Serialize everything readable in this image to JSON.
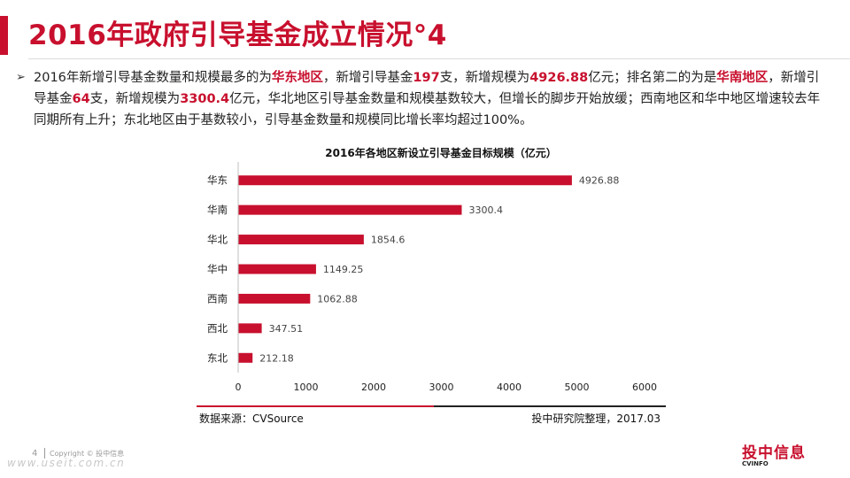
{
  "header": {
    "title": "2016年政府引导基金成立情况°4"
  },
  "summary": {
    "bullet": "➢",
    "parts": [
      {
        "text": "2016年新增引导基金数量和规模最多的为",
        "highlight": false
      },
      {
        "text": "华东地区",
        "highlight": true
      },
      {
        "text": "，新增引导基金",
        "highlight": false
      },
      {
        "text": "197",
        "highlight": true
      },
      {
        "text": "支，新增规模为",
        "highlight": false
      },
      {
        "text": "4926.88",
        "highlight": true
      },
      {
        "text": "亿元；排名第二的为是",
        "highlight": false
      },
      {
        "text": "华南地区",
        "highlight": true
      },
      {
        "text": "，新增引导基金",
        "highlight": false
      },
      {
        "text": "64",
        "highlight": true
      },
      {
        "text": "支，新增规模为",
        "highlight": false
      },
      {
        "text": "3300.4",
        "highlight": true
      },
      {
        "text": "亿元，华北地区引导基金数量和规模基数较大，但增长的脚步开始放缓；西南地区和华中地区增速较去年同期所有上升；东北地区由于基数较小，引导基金数量和规模同比增长率均超过100%。",
        "highlight": false
      }
    ]
  },
  "chart_data": {
    "type": "bar",
    "orientation": "horizontal",
    "title": "2016年各地区新设立引导基金目标规模（亿元）",
    "categories": [
      "华东",
      "华南",
      "华北",
      "华中",
      "西南",
      "西北",
      "东北"
    ],
    "values": [
      4926.88,
      3300.4,
      1854.6,
      1149.25,
      1062.88,
      347.51,
      212.18
    ],
    "value_labels": [
      "4926.88",
      "3300.4",
      "1854.6",
      "1149.25",
      "1062.88",
      "347.51",
      "212.18"
    ],
    "xlim": [
      0,
      6000
    ],
    "xticks": [
      0,
      1000,
      2000,
      3000,
      4000,
      5000,
      6000
    ],
    "grid": false,
    "legend": "none",
    "bar_color": "#c8102e"
  },
  "footer": {
    "source": "数据来源：CVSource",
    "credit": "投中研究院整理，2017.03",
    "page_number": "4",
    "copyright": "Copyright © 投中信息",
    "watermark": "www.useit.com.cn",
    "logo_cn": "投中信息",
    "logo_en": "CVINFO"
  },
  "colors": {
    "accent": "#c8102e",
    "text": "#222222"
  }
}
